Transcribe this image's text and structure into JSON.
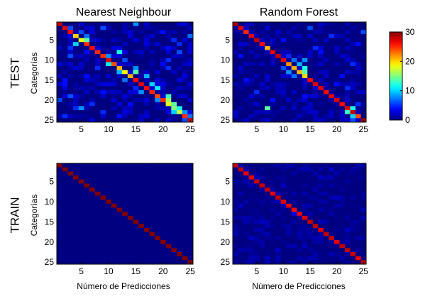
{
  "row_labels": [
    "TEST",
    "TRAIN"
  ],
  "chart_data": [
    {
      "type": "heatmap",
      "title": "Nearest Neighbour",
      "ylabel": "Categorías",
      "xlabel": "",
      "size": 25,
      "diagonal": [
        28,
        27,
        26,
        20,
        18,
        25,
        26,
        25,
        25,
        27,
        24,
        21,
        19,
        21,
        26,
        27,
        26,
        25,
        24,
        25,
        18,
        15,
        17,
        25,
        28
      ],
      "offdiag": [
        [
          1,
          15,
          8
        ],
        [
          2,
          3,
          6
        ],
        [
          3,
          5,
          6
        ],
        [
          4,
          6,
          7
        ],
        [
          5,
          6,
          14
        ],
        [
          6,
          4,
          10
        ],
        [
          7,
          3,
          5
        ],
        [
          8,
          6,
          4
        ],
        [
          8,
          12,
          12
        ],
        [
          9,
          10,
          8
        ],
        [
          10,
          13,
          6
        ],
        [
          11,
          10,
          11
        ],
        [
          12,
          8,
          5
        ],
        [
          12,
          15,
          8
        ],
        [
          13,
          12,
          9
        ],
        [
          13,
          15,
          14
        ],
        [
          14,
          6,
          4
        ],
        [
          14,
          17,
          9
        ],
        [
          15,
          13,
          7
        ],
        [
          16,
          18,
          10
        ],
        [
          17,
          15,
          5
        ],
        [
          17,
          19,
          11
        ],
        [
          18,
          16,
          8
        ],
        [
          19,
          21,
          13
        ],
        [
          20,
          21,
          16
        ],
        [
          20,
          19,
          8
        ],
        [
          21,
          22,
          14
        ],
        [
          21,
          7,
          5
        ],
        [
          22,
          5,
          8
        ],
        [
          22,
          23,
          12
        ],
        [
          23,
          22,
          10
        ],
        [
          23,
          24,
          8
        ],
        [
          24,
          25,
          7
        ],
        [
          25,
          24,
          6
        ],
        [
          3,
          20,
          4
        ],
        [
          5,
          22,
          5
        ],
        [
          8,
          23,
          6
        ],
        [
          11,
          20,
          4
        ],
        [
          4,
          25,
          7
        ],
        [
          19,
          3,
          6
        ],
        [
          21,
          14,
          4
        ],
        [
          23,
          9,
          5
        ],
        [
          2,
          9,
          6
        ],
        [
          10,
          21,
          5
        ],
        [
          16,
          2,
          4
        ],
        [
          20,
          1,
          6
        ],
        [
          24,
          2,
          5
        ],
        [
          9,
          3,
          6
        ],
        [
          7,
          21,
          4
        ],
        [
          6,
          23,
          5
        ],
        [
          18,
          9,
          4
        ],
        [
          12,
          21,
          5
        ],
        [
          15,
          2,
          4
        ],
        [
          22,
          4,
          5
        ],
        [
          24,
          12,
          4
        ]
      ],
      "noise": 1.3,
      "seed": 11,
      "vmin": 0,
      "vmax": 30,
      "xticks": [
        5,
        10,
        15,
        20,
        25
      ],
      "yticks": [
        5,
        10,
        15,
        20,
        25
      ]
    },
    {
      "type": "heatmap",
      "title": "Random Forest",
      "ylabel": "",
      "xlabel": "",
      "size": 25,
      "diagonal": [
        29,
        27,
        25,
        27,
        28,
        26,
        21,
        27,
        28,
        27,
        22,
        21,
        21,
        20,
        26,
        27,
        27,
        26,
        27,
        27,
        26,
        27,
        28,
        24,
        29
      ],
      "offdiag": [
        [
          9,
          11,
          5
        ],
        [
          10,
          12,
          7
        ],
        [
          10,
          14,
          8
        ],
        [
          11,
          13,
          9
        ],
        [
          12,
          10,
          6
        ],
        [
          12,
          14,
          12
        ],
        [
          13,
          11,
          8
        ],
        [
          13,
          14,
          14
        ],
        [
          14,
          12,
          7
        ],
        [
          22,
          7,
          14
        ],
        [
          22,
          23,
          12
        ],
        [
          23,
          22,
          13
        ],
        [
          24,
          23,
          10
        ],
        [
          2,
          15,
          6
        ],
        [
          4,
          19,
          5
        ],
        [
          6,
          24,
          4
        ],
        [
          7,
          16,
          5
        ],
        [
          15,
          3,
          4
        ],
        [
          18,
          5,
          5
        ],
        [
          20,
          8,
          4
        ],
        [
          16,
          20,
          4
        ],
        [
          11,
          23,
          5
        ],
        [
          3,
          25,
          6
        ],
        [
          19,
          14,
          4
        ],
        [
          8,
          17,
          4
        ],
        [
          17,
          22,
          5
        ],
        [
          25,
          23,
          6
        ],
        [
          21,
          24,
          5
        ],
        [
          5,
          10,
          4
        ],
        [
          14,
          21,
          4
        ],
        [
          9,
          2,
          4
        ]
      ],
      "noise": 1.1,
      "seed": 23,
      "vmin": 0,
      "vmax": 30,
      "xticks": [
        5,
        10,
        15,
        20,
        25
      ],
      "yticks": [
        5,
        10,
        15,
        20,
        25
      ]
    },
    {
      "type": "heatmap",
      "title": "",
      "ylabel": "Categorías",
      "xlabel": "Número de Predicciones",
      "size": 25,
      "diagonal": [
        30,
        30,
        30,
        30,
        30,
        30,
        30,
        30,
        30,
        30,
        30,
        30,
        30,
        30,
        30,
        30,
        30,
        30,
        30,
        30,
        30,
        30,
        30,
        30,
        30
      ],
      "offdiag": [],
      "noise": 0.0,
      "seed": 3,
      "vmin": 0,
      "vmax": 30,
      "xticks": [
        5,
        10,
        15,
        20,
        25
      ],
      "yticks": [
        5,
        10,
        15,
        20,
        25
      ]
    },
    {
      "type": "heatmap",
      "title": "",
      "ylabel": "",
      "xlabel": "Número de Predicciones",
      "size": 25,
      "diagonal": [
        28,
        28,
        27,
        27,
        28,
        28,
        28,
        27,
        28,
        27,
        27,
        26,
        27,
        27,
        28,
        28,
        27,
        28,
        28,
        27,
        28,
        28,
        28,
        27,
        28
      ],
      "offdiag": [
        [
          13,
          12,
          3
        ],
        [
          4,
          17,
          2
        ],
        [
          19,
          4,
          2
        ],
        [
          22,
          9,
          2
        ],
        [
          17,
          22,
          2
        ],
        [
          6,
          10,
          2
        ],
        [
          9,
          20,
          2
        ],
        [
          15,
          6,
          2
        ],
        [
          21,
          14,
          2
        ],
        [
          11,
          2,
          2
        ],
        [
          2,
          19,
          2
        ],
        [
          24,
          7,
          2
        ]
      ],
      "noise": 0.7,
      "seed": 41,
      "vmin": 0,
      "vmax": 30,
      "xticks": [
        5,
        10,
        15,
        20,
        25
      ],
      "yticks": [
        5,
        10,
        15,
        20,
        25
      ]
    }
  ],
  "colorbar": {
    "vmin": 0,
    "vmax": 30,
    "ticks": [
      "0",
      "10",
      "20",
      "30"
    ]
  }
}
